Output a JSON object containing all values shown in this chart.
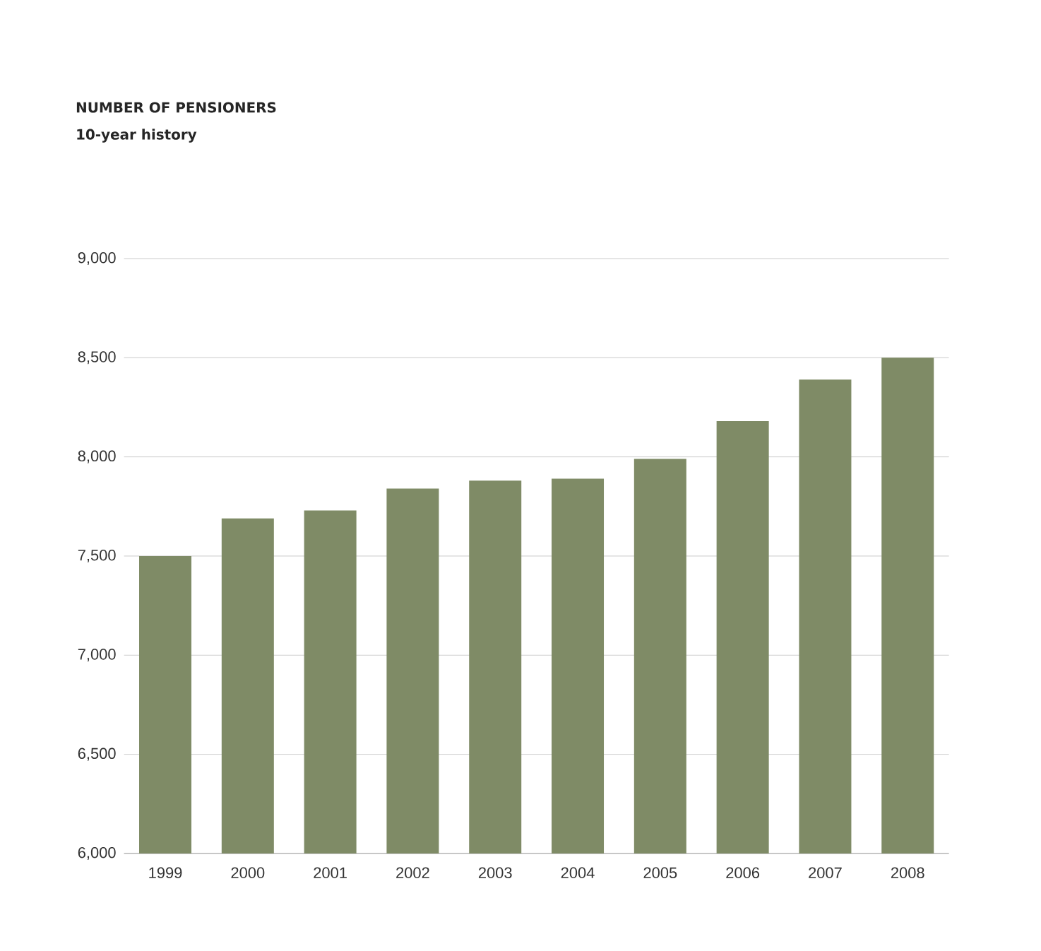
{
  "chart_data": {
    "type": "bar",
    "title": "NUMBER OF PENSIONERS",
    "subtitle": "10-year history",
    "categories": [
      "1999",
      "2000",
      "2001",
      "2002",
      "2003",
      "2004",
      "2005",
      "2006",
      "2007",
      "2008"
    ],
    "values": [
      7500,
      7690,
      7730,
      7840,
      7880,
      7890,
      7990,
      8180,
      8390,
      8500
    ],
    "color": "#7f8b66",
    "ylim": [
      6000,
      9000
    ],
    "yticks": [
      {
        "value": 6000,
        "label": "6,000"
      },
      {
        "value": 6500,
        "label": "6,500"
      },
      {
        "value": 7000,
        "label": "7,000"
      },
      {
        "value": 7500,
        "label": "7,500"
      },
      {
        "value": 8000,
        "label": "8,000"
      },
      {
        "value": 8500,
        "label": "8,500"
      },
      {
        "value": 9000,
        "label": "9,000"
      }
    ],
    "grid": "y"
  }
}
